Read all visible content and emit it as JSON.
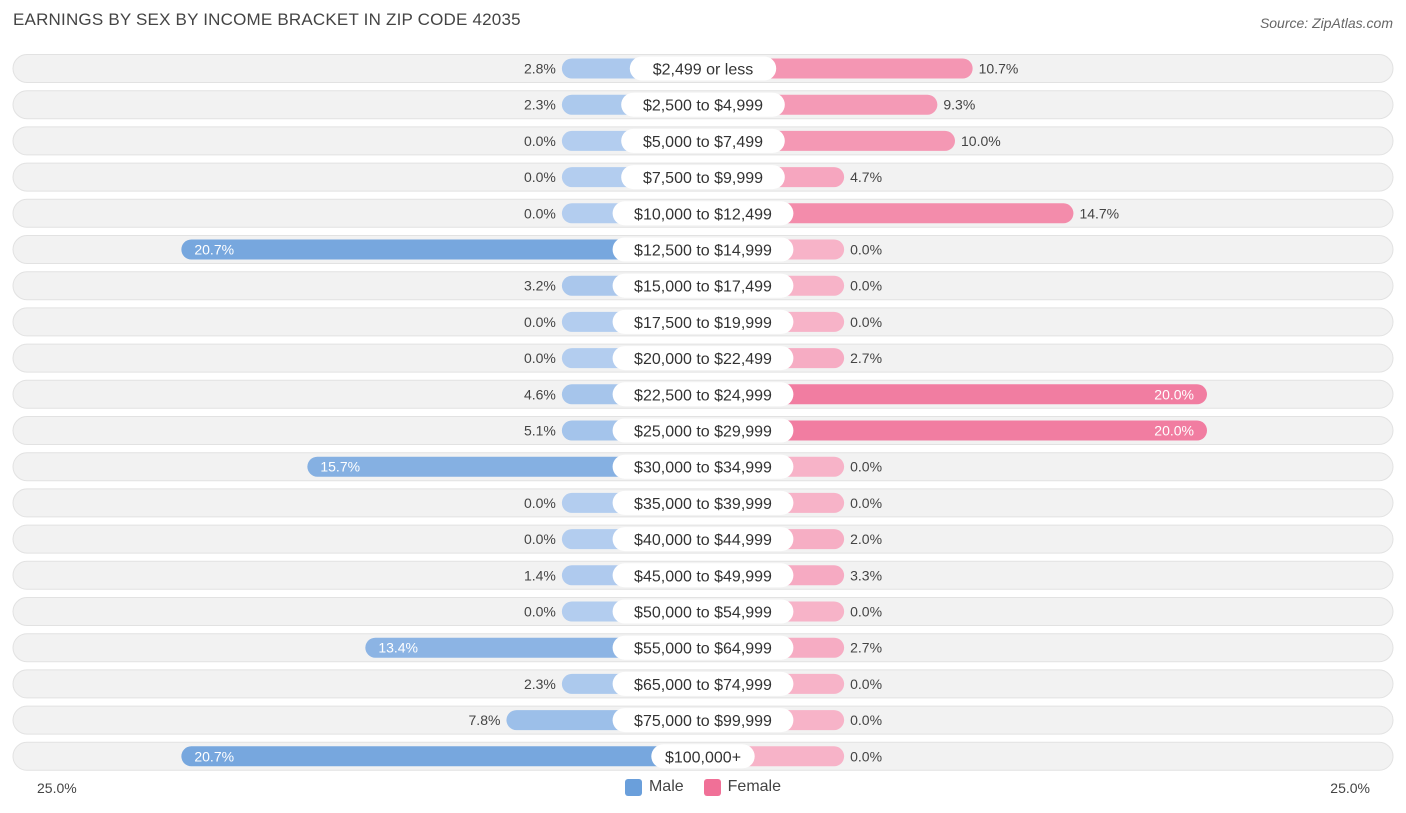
{
  "title": "EARNINGS BY SEX BY INCOME BRACKET IN ZIP CODE 42035",
  "source": "Source: ZipAtlas.com",
  "axis": {
    "left_label": "25.0%",
    "right_label": "25.0%"
  },
  "legend": {
    "male_label": "Male",
    "female_label": "Female",
    "male_color": "#6a9fdb",
    "female_color": "#f07097"
  },
  "chart_data": {
    "type": "bar",
    "orientation": "horizontal-diverging",
    "title": "EARNINGS BY SEX BY INCOME BRACKET IN ZIP CODE 42035",
    "xlim": [
      -25,
      25
    ],
    "categories": [
      "$2,499 or less",
      "$2,500 to $4,999",
      "$5,000 to $7,499",
      "$7,500 to $9,999",
      "$10,000 to $12,499",
      "$12,500 to $14,999",
      "$15,000 to $17,499",
      "$17,500 to $19,999",
      "$20,000 to $22,499",
      "$22,500 to $24,999",
      "$25,000 to $29,999",
      "$30,000 to $34,999",
      "$35,000 to $39,999",
      "$40,000 to $44,999",
      "$45,000 to $49,999",
      "$50,000 to $54,999",
      "$55,000 to $64,999",
      "$65,000 to $74,999",
      "$75,000 to $99,999",
      "$100,000+"
    ],
    "series": [
      {
        "name": "Male",
        "values": [
          2.8,
          2.3,
          0.0,
          0.0,
          0.0,
          20.7,
          3.2,
          0.0,
          0.0,
          4.6,
          5.1,
          15.7,
          0.0,
          0.0,
          1.4,
          0.0,
          13.4,
          2.3,
          7.8,
          20.7
        ],
        "labels": [
          "2.8%",
          "2.3%",
          "0.0%",
          "0.0%",
          "0.0%",
          "20.7%",
          "3.2%",
          "0.0%",
          "0.0%",
          "4.6%",
          "5.1%",
          "15.7%",
          "0.0%",
          "0.0%",
          "1.4%",
          "0.0%",
          "13.4%",
          "2.3%",
          "7.8%",
          "20.7%"
        ]
      },
      {
        "name": "Female",
        "values": [
          10.7,
          9.3,
          10.0,
          4.7,
          14.7,
          0.0,
          0.0,
          0.0,
          2.7,
          20.0,
          20.0,
          0.0,
          0.0,
          2.0,
          3.3,
          0.0,
          2.7,
          0.0,
          0.0,
          0.0
        ],
        "labels": [
          "10.7%",
          "9.3%",
          "10.0%",
          "4.7%",
          "14.7%",
          "0.0%",
          "0.0%",
          "0.0%",
          "2.7%",
          "20.0%",
          "20.0%",
          "0.0%",
          "0.0%",
          "2.0%",
          "3.3%",
          "0.0%",
          "2.7%",
          "0.0%",
          "0.0%",
          "0.0%"
        ]
      }
    ]
  }
}
